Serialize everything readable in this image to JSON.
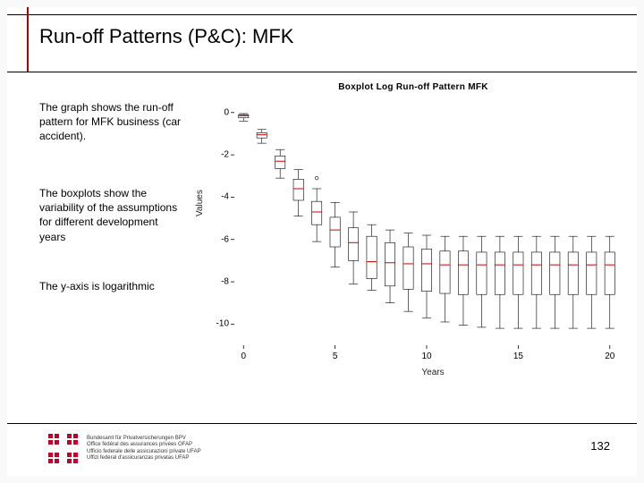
{
  "slide": {
    "title": "Run-off Patterns (P&C): MFK",
    "paragraphs": [
      "The graph shows the run-off pattern for MFK business (car accident).",
      "The boxplots show the variability of the assumptions for different development years",
      "The y-axis is logarithmic"
    ],
    "page_number": "132",
    "footer_lines": [
      "Bundesamt für Privatversicherungen BPV",
      "Office fédéral des assurances privées OFAP",
      "Ufficio federale delle assicurazioni private UFAP",
      "Uffizi federal d'assicuranzas privatas UFAP"
    ]
  },
  "chart": {
    "type": "boxplot",
    "title": "Boxplot Log Run-off Pattern MFK",
    "xlabel": "Years",
    "ylabel": "Values",
    "ylim": [
      -11,
      0.5
    ],
    "xlim": [
      -0.5,
      20.5
    ],
    "yticks": [
      0,
      -2,
      -4,
      -6,
      -8,
      -10
    ],
    "xticks": [
      0,
      5,
      10,
      15,
      20
    ],
    "background_color": "#ffffff",
    "box_stroke": "#000000",
    "median_color": "#d00000",
    "outlier_stroke": "#000000",
    "line_width": 0.6,
    "box_width": 0.55,
    "boxes": [
      {
        "x": 0,
        "median": -0.15,
        "q1": -0.25,
        "q3": -0.1,
        "lo": -0.4,
        "hi": -0.05,
        "outliers": []
      },
      {
        "x": 1,
        "median": -1.05,
        "q1": -1.2,
        "q3": -0.95,
        "lo": -1.45,
        "hi": -0.8,
        "outliers": []
      },
      {
        "x": 2,
        "median": -2.3,
        "q1": -2.65,
        "q3": -2.05,
        "lo": -3.1,
        "hi": -1.75,
        "outliers": []
      },
      {
        "x": 3,
        "median": -3.6,
        "q1": -4.15,
        "q3": -3.15,
        "lo": -4.9,
        "hi": -2.7,
        "outliers": []
      },
      {
        "x": 4,
        "median": -4.7,
        "q1": -5.3,
        "q3": -4.2,
        "lo": -6.1,
        "hi": -3.6,
        "outliers": [
          -3.1
        ]
      },
      {
        "x": 5,
        "median": -5.55,
        "q1": -6.35,
        "q3": -4.95,
        "lo": -7.3,
        "hi": -4.25,
        "outliers": []
      },
      {
        "x": 6,
        "median": -6.15,
        "q1": -7.0,
        "q3": -5.45,
        "lo": -8.1,
        "hi": -4.7,
        "outliers": []
      },
      {
        "x": 7,
        "median": -7.05,
        "q1": -7.85,
        "q3": -5.85,
        "lo": -8.4,
        "hi": -5.3,
        "outliers": []
      },
      {
        "x": 8,
        "median": -7.1,
        "q1": -8.2,
        "q3": -6.15,
        "lo": -9.0,
        "hi": -5.55,
        "outliers": []
      },
      {
        "x": 9,
        "median": -7.15,
        "q1": -8.35,
        "q3": -6.35,
        "lo": -9.4,
        "hi": -5.7,
        "outliers": []
      },
      {
        "x": 10,
        "median": -7.15,
        "q1": -8.45,
        "q3": -6.45,
        "lo": -9.7,
        "hi": -5.8,
        "outliers": []
      },
      {
        "x": 11,
        "median": -7.2,
        "q1": -8.55,
        "q3": -6.55,
        "lo": -9.9,
        "hi": -5.85,
        "outliers": []
      },
      {
        "x": 12,
        "median": -7.2,
        "q1": -8.6,
        "q3": -6.55,
        "lo": -10.05,
        "hi": -5.85,
        "outliers": []
      },
      {
        "x": 13,
        "median": -7.2,
        "q1": -8.6,
        "q3": -6.6,
        "lo": -10.15,
        "hi": -5.85,
        "outliers": []
      },
      {
        "x": 14,
        "median": -7.2,
        "q1": -8.6,
        "q3": -6.6,
        "lo": -10.2,
        "hi": -5.85,
        "outliers": []
      },
      {
        "x": 15,
        "median": -7.2,
        "q1": -8.6,
        "q3": -6.6,
        "lo": -10.2,
        "hi": -5.85,
        "outliers": []
      },
      {
        "x": 16,
        "median": -7.2,
        "q1": -8.6,
        "q3": -6.6,
        "lo": -10.2,
        "hi": -5.85,
        "outliers": []
      },
      {
        "x": 17,
        "median": -7.2,
        "q1": -8.6,
        "q3": -6.6,
        "lo": -10.2,
        "hi": -5.85,
        "outliers": []
      },
      {
        "x": 18,
        "median": -7.2,
        "q1": -8.6,
        "q3": -6.6,
        "lo": -10.2,
        "hi": -5.85,
        "outliers": []
      },
      {
        "x": 19,
        "median": -7.2,
        "q1": -8.6,
        "q3": -6.6,
        "lo": -10.2,
        "hi": -5.85,
        "outliers": []
      },
      {
        "x": 20,
        "median": -7.2,
        "q1": -8.6,
        "q3": -6.6,
        "lo": -10.2,
        "hi": -5.85,
        "outliers": []
      }
    ]
  },
  "colors": {
    "accent_red": "#b00000",
    "logo_red": "#c1002a",
    "rule": "#000000"
  }
}
